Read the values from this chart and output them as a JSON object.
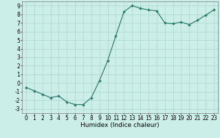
{
  "x": [
    0,
    1,
    2,
    3,
    4,
    5,
    6,
    7,
    8,
    9,
    10,
    11,
    12,
    13,
    14,
    15,
    16,
    17,
    18,
    19,
    20,
    21,
    22,
    23
  ],
  "y": [
    -0.5,
    -0.9,
    -1.3,
    -1.7,
    -1.5,
    -2.2,
    -2.5,
    -2.5,
    -1.7,
    0.3,
    2.6,
    5.5,
    8.3,
    9.0,
    8.7,
    8.5,
    8.4,
    7.0,
    6.9,
    7.1,
    6.8,
    7.3,
    7.9,
    8.5
  ],
  "line_color": "#2e7d6e",
  "marker": "D",
  "markersize": 2.0,
  "linewidth": 0.9,
  "bg_color": "#cceee8",
  "grid_color": "#aad4cc",
  "xlabel": "Humidex (Indice chaleur)",
  "xlim": [
    -0.5,
    23.5
  ],
  "ylim": [
    -3.5,
    9.5
  ],
  "yticks": [
    -3,
    -2,
    -1,
    0,
    1,
    2,
    3,
    4,
    5,
    6,
    7,
    8,
    9
  ],
  "xticks": [
    0,
    1,
    2,
    3,
    4,
    5,
    6,
    7,
    8,
    9,
    10,
    11,
    12,
    13,
    14,
    15,
    16,
    17,
    18,
    19,
    20,
    21,
    22,
    23
  ],
  "tick_fontsize": 5.5,
  "label_fontsize": 6.5
}
